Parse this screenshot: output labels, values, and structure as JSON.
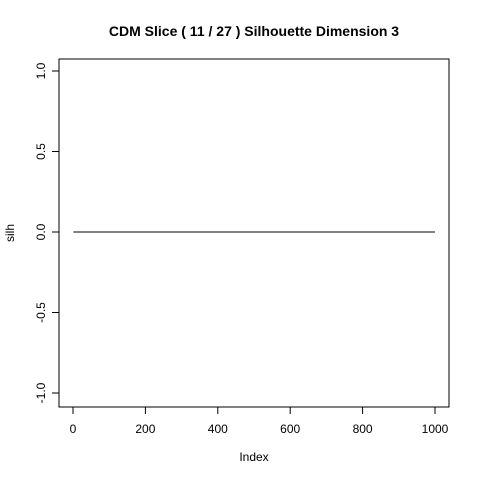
{
  "chart_data": {
    "type": "line",
    "title": "CDM Slice ( 11 / 27 )  Silhouette Dimension 3",
    "xlabel": "Index",
    "ylabel": "silh",
    "xlim": [
      0,
      1000
    ],
    "ylim": [
      -1.0,
      1.0
    ],
    "xticks": [
      0,
      200,
      400,
      600,
      800,
      1000
    ],
    "xtick_labels": [
      "0",
      "200",
      "400",
      "600",
      "800",
      "1000"
    ],
    "yticks": [
      -1.0,
      -0.5,
      0.0,
      0.5,
      1.0
    ],
    "ytick_labels": [
      "-1.0",
      "-0.5",
      "0.0",
      "0.5",
      "1.0"
    ],
    "grid": false,
    "series": [
      {
        "color": "#000000",
        "x": [
          1,
          1000
        ],
        "y": [
          0.0,
          0.0
        ]
      }
    ]
  }
}
